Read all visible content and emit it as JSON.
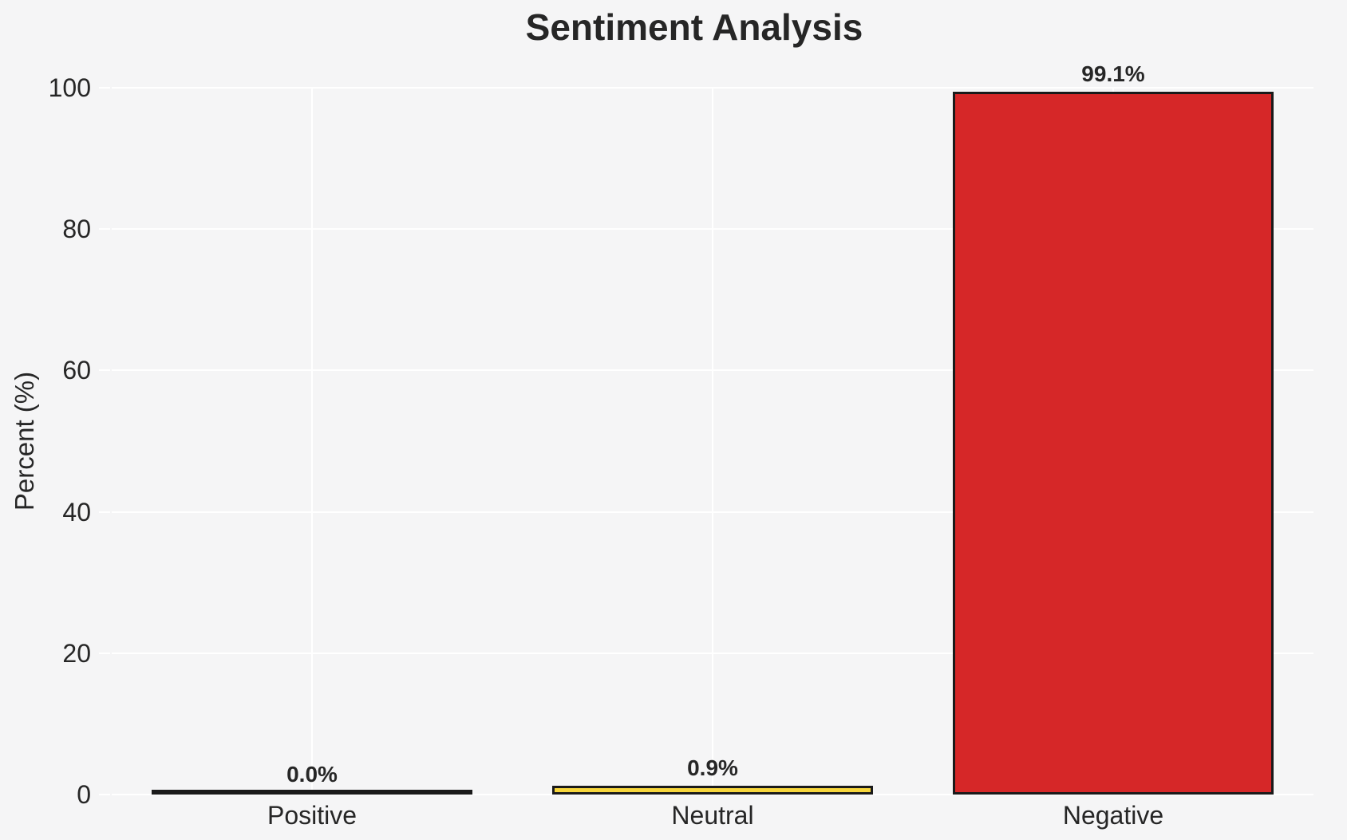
{
  "figure": {
    "background_color": "#f5f5f6",
    "grid_color": "#ffffff",
    "text_color": "#262626"
  },
  "chart_data": {
    "type": "bar",
    "title": "Sentiment Analysis",
    "xlabel": "",
    "ylabel": "Percent (%)",
    "categories": [
      "Positive",
      "Neutral",
      "Negative"
    ],
    "values": [
      0.0,
      0.9,
      99.1
    ],
    "value_labels": [
      "0.0%",
      "0.9%",
      "99.1%"
    ],
    "yticks": [
      0,
      20,
      40,
      60,
      80,
      100
    ],
    "ylim": [
      0,
      100
    ],
    "grid": "both",
    "legend": "none",
    "bar_fill_colors": [
      "#1a1a1a",
      "#f7d63c",
      "#d62728"
    ],
    "bar_edge_color": "#1a1a1a"
  }
}
